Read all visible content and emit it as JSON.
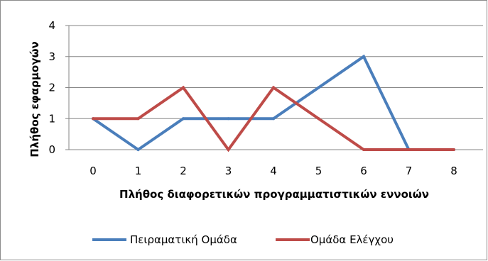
{
  "chart_data": {
    "type": "line",
    "title": "",
    "xlabel": "Πλήθος διαφορετικών προγραμματιστικών εννοιών",
    "ylabel": "Πλήθος εφαρμογών",
    "x": [
      0,
      1,
      2,
      3,
      4,
      5,
      6,
      7,
      8
    ],
    "x_tick_labels": [
      "0",
      "1",
      "2",
      "3",
      "4",
      "5",
      "6",
      "7",
      "8"
    ],
    "y_tick_labels": [
      "0",
      "1",
      "2",
      "3",
      "4"
    ],
    "ylim": [
      0,
      4
    ],
    "xlim": [
      0,
      8
    ],
    "grid": "horizontal",
    "legend_position": "bottom",
    "series": [
      {
        "name": "Πειραματική Ομάδα",
        "color": "#4a7ebb",
        "values": [
          1,
          0,
          1,
          1,
          1,
          2,
          3,
          0,
          0
        ]
      },
      {
        "name": "Ομάδα Ελέγχου",
        "color": "#be4b48",
        "values": [
          1,
          1,
          2,
          0,
          2,
          1,
          0,
          0,
          0
        ]
      }
    ]
  }
}
